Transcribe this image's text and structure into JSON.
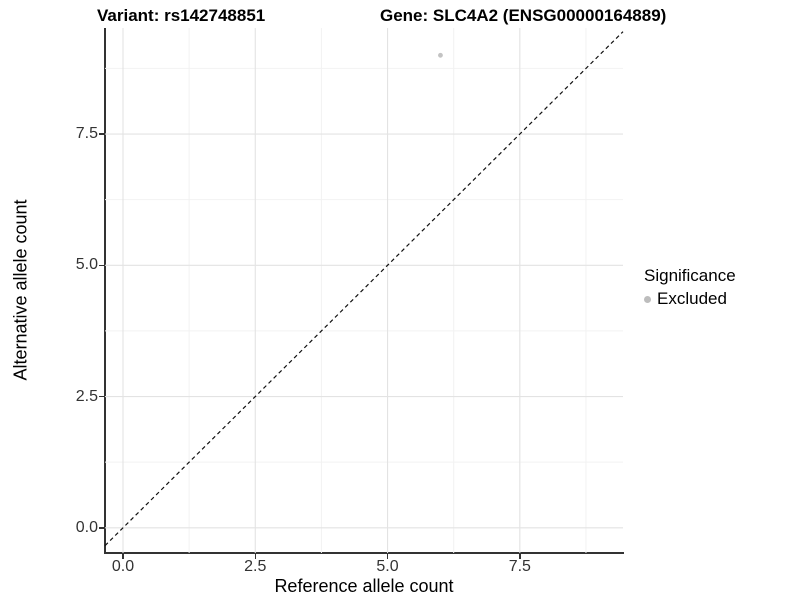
{
  "title": {
    "variant": "Variant: rs142748851",
    "gene": "Gene: SLC4A2 (ENSG00000164889)"
  },
  "axes": {
    "x": {
      "label": "Reference allele count",
      "ticks": [
        "0.0",
        "2.5",
        "5.0",
        "7.5"
      ]
    },
    "y": {
      "label": "Alternative allele count",
      "ticks": [
        "0.0",
        "2.5",
        "5.0",
        "7.5"
      ]
    }
  },
  "legend": {
    "title": "Significance",
    "items": [
      {
        "label": "Excluded",
        "color": "#bdbdbd"
      }
    ]
  },
  "colors": {
    "point": "#c3c3c3",
    "axis_line": "#333333",
    "grid_major": "#e3e3e3",
    "grid_minor": "#f2f2f2",
    "reference_line": "#111111",
    "tick_text": "#333333"
  },
  "chart_data": {
    "type": "scatter",
    "title": "Variant: rs142748851 / Gene: SLC4A2 (ENSG00000164889)",
    "xlabel": "Reference allele count",
    "ylabel": "Alternative allele count",
    "xlim": [
      -0.34,
      9.45
    ],
    "ylim": [
      -0.48,
      9.52
    ],
    "x_ticks": [
      0,
      2.5,
      5,
      7.5
    ],
    "y_ticks": [
      0,
      2.5,
      5,
      7.5
    ],
    "x_minor_ticks": [
      1.25,
      3.75,
      6.25,
      8.75
    ],
    "y_minor_ticks": [
      1.25,
      3.75,
      6.25,
      8.75
    ],
    "grid": "major and minor gridlines, light gray on white",
    "legend_position": "right",
    "series": [
      {
        "name": "Excluded",
        "color": "#c3c3c3",
        "point_radius": 2.4,
        "points": [
          {
            "x": 6,
            "y": 9
          }
        ]
      }
    ],
    "reference_line": {
      "type": "identity",
      "equation": "y = x",
      "style": "dashed",
      "color": "#111111"
    }
  }
}
